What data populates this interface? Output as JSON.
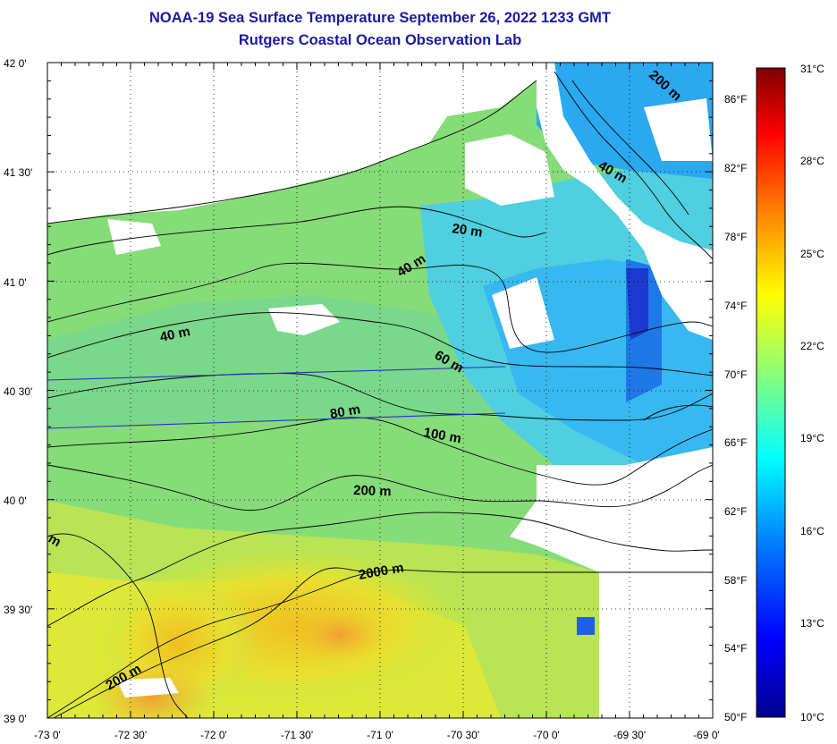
{
  "title_line1": "NOAA-19 Sea Surface Temperature September 26, 2022 1233 GMT",
  "title_line2": "Rutgers Coastal Ocean Observation Lab",
  "lat_labels": [
    "42 0'",
    "41 30'",
    "41 0'",
    "40 30'",
    "40 0'",
    "39 30'",
    "39 0'"
  ],
  "lon_labels": [
    "-73 0'",
    "-72 30'",
    "-72 0'",
    "-71 30'",
    "-71 0'",
    "-70 30'",
    "-70 0'",
    "-69 30'",
    "-69 0'"
  ],
  "fahrenheit_labels": [
    "86°F",
    "82°F",
    "78°F",
    "74°F",
    "70°F",
    "66°F",
    "62°F",
    "58°F",
    "54°F",
    "50°F"
  ],
  "celsius_labels": [
    "31°C",
    "28°C",
    "25°C",
    "22°C",
    "19°C",
    "16°C",
    "13°C",
    "10°C"
  ],
  "colorbar": {
    "min_c": 10,
    "max_c": 31,
    "stops": [
      "#00008f",
      "#0000ff",
      "#0080ff",
      "#00ffff",
      "#80ff80",
      "#ffff00",
      "#ff8000",
      "#ff0000",
      "#800000"
    ]
  },
  "contour_labels": {
    "c20": "20 m",
    "c40a": "40 m",
    "c40b": "40 m",
    "c40c": "40 m",
    "c60": "60 m",
    "c80": "80 m",
    "c100": "100 m",
    "c200a": "200 m",
    "c200b": "200 m",
    "c200c": "200 m",
    "c2000": "2000 m",
    "cm_edge": "m"
  },
  "colors": {
    "title": "#1a1aa0",
    "land": "#ffffff",
    "sst_cold": "#2a9ff0",
    "sst_cool": "#5ad8d0",
    "sst_mid": "#80e070",
    "sst_warm": "#e8e830",
    "sst_hot": "#f0a030"
  }
}
